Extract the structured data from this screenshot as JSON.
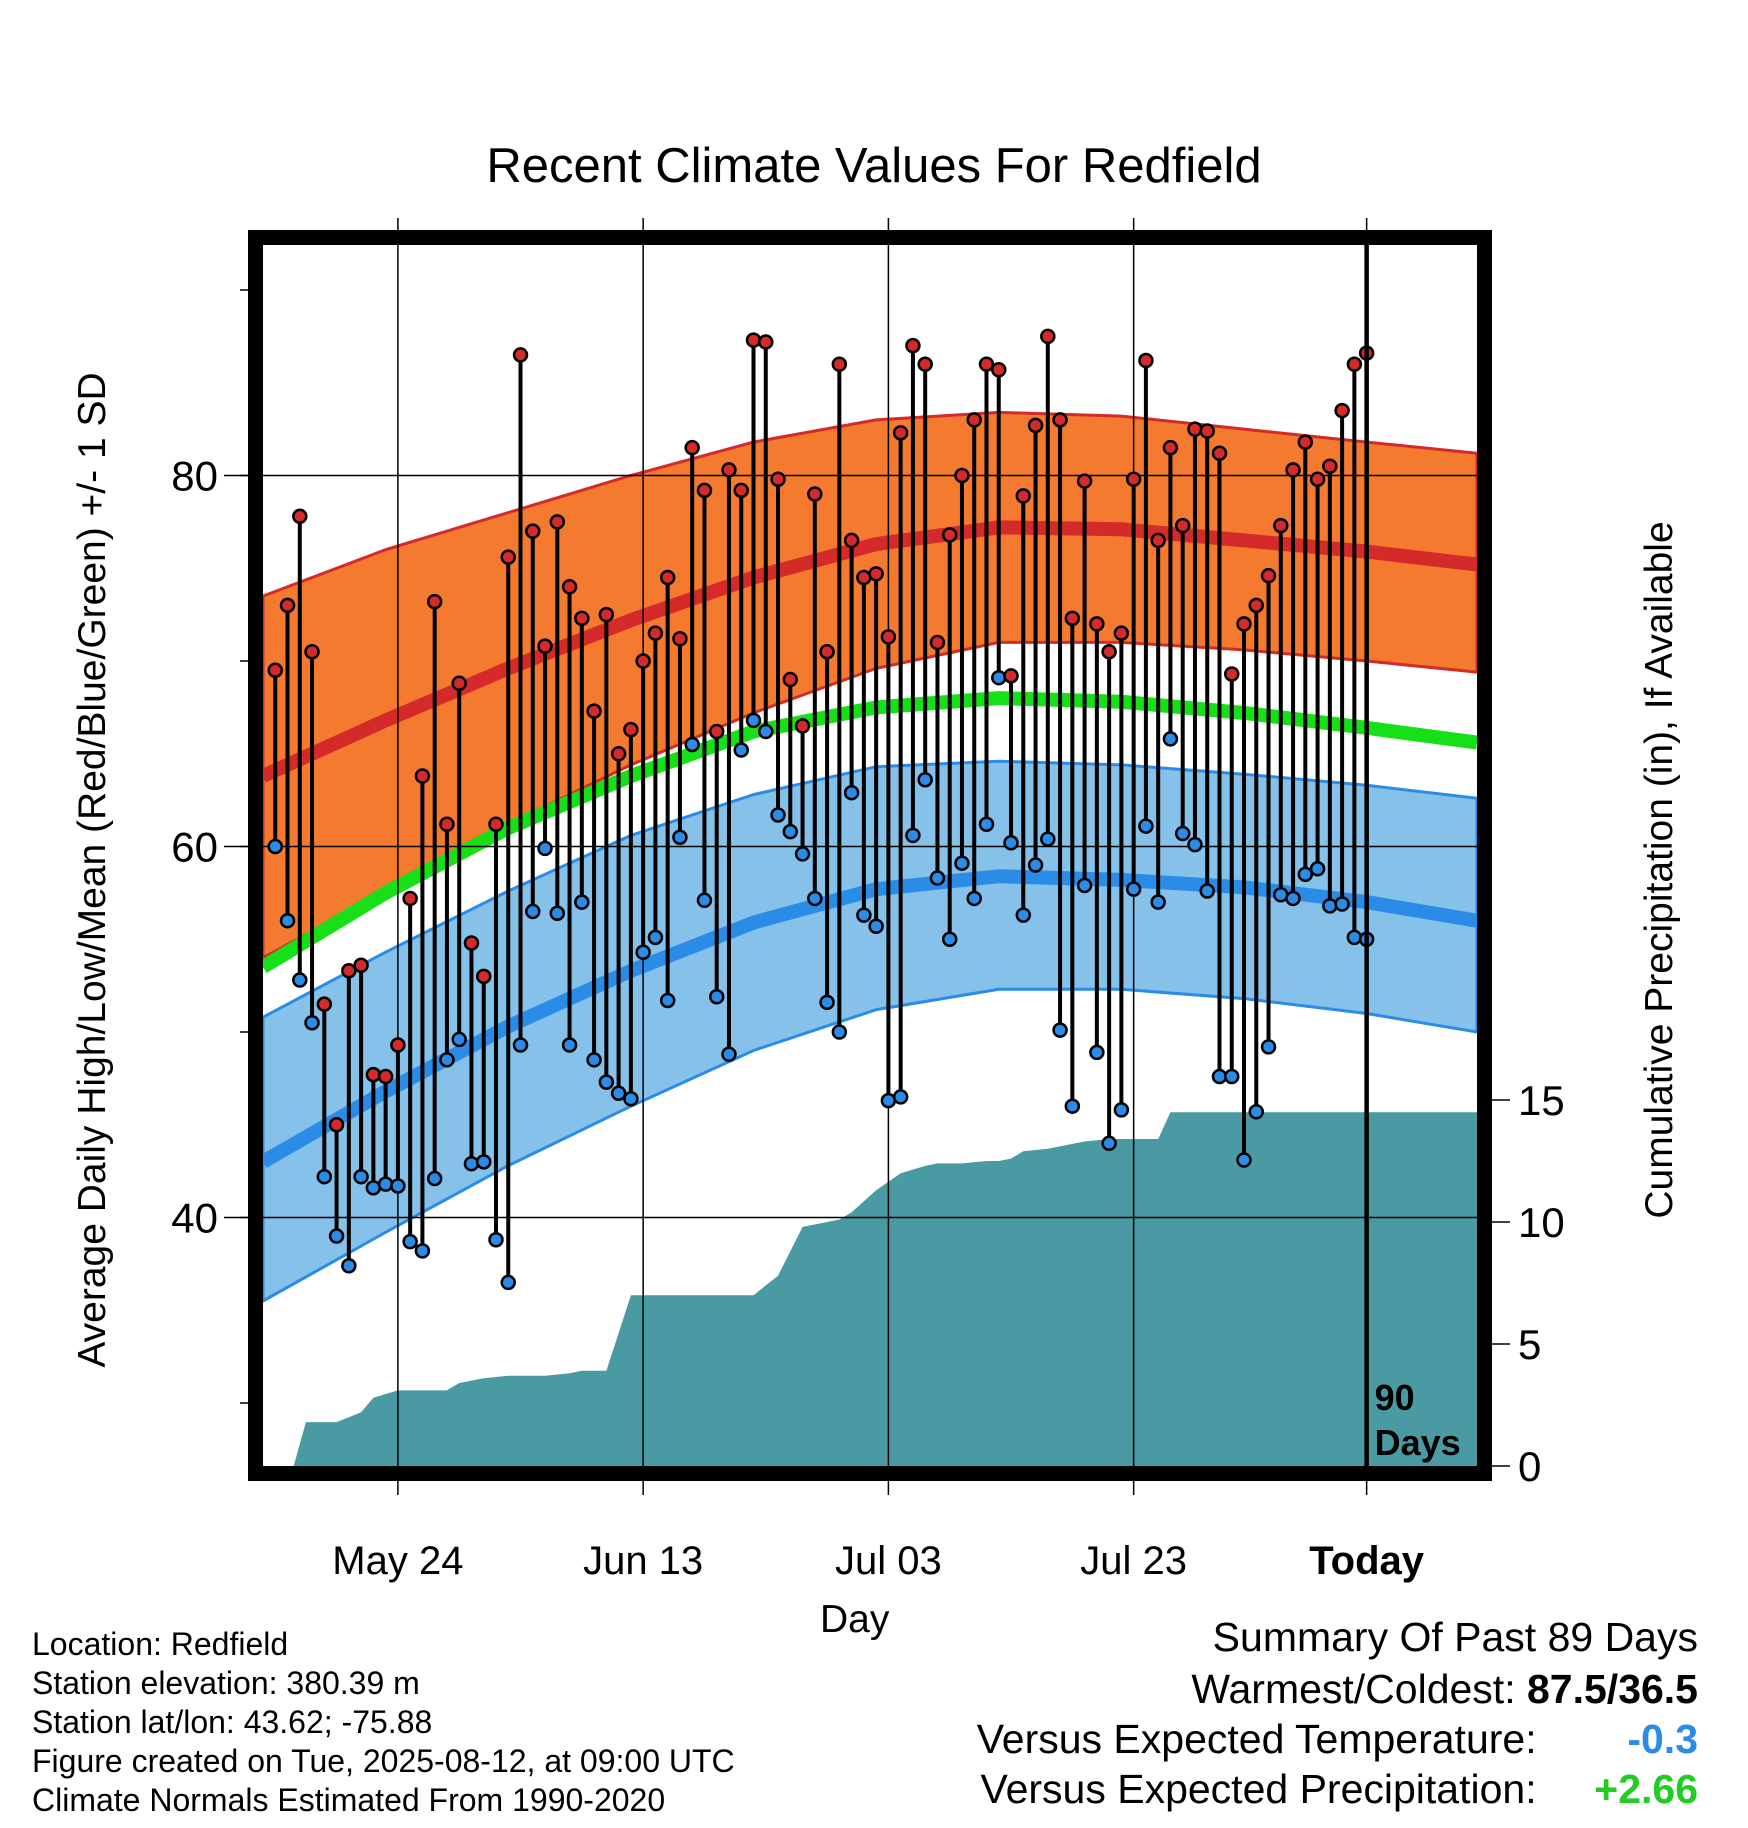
{
  "chart_data": {
    "type": "line",
    "title": "Recent Climate Values For Redfield",
    "ylabel_left": "Average Daily High/Low/Mean (Red/Blue/Green) +/- 1 SD",
    "ylabel_right": "Cumulative Precipitation (in), If Available",
    "xlabel": "Day",
    "x_tick_labels": [
      "May 24",
      "Jun 13",
      "Jul 03",
      "Jul 23",
      "Today"
    ],
    "x_tick_days": [
      -79,
      -59,
      -39,
      -19,
      0
    ],
    "x_range_days": [
      -90,
      9
    ],
    "y_left_ticks": [
      40,
      60,
      80
    ],
    "y_left_range": [
      27,
      93
    ],
    "y_right_ticks": [
      0,
      5,
      10,
      15
    ],
    "y_right_range": [
      0,
      15
    ],
    "window_label": [
      "90",
      "Days"
    ],
    "normals": {
      "days": [
        -90,
        -80,
        -70,
        -60,
        -50,
        -40,
        -30,
        -20,
        -10,
        0,
        9
      ],
      "high_mean": [
        63.8,
        66.8,
        69.6,
        72.2,
        74.5,
        76.3,
        77.2,
        77.1,
        76.5,
        75.9,
        75.2
      ],
      "high_upper": [
        73.5,
        76.0,
        78.0,
        80.0,
        81.8,
        83.0,
        83.4,
        83.2,
        82.5,
        81.8,
        81.2
      ],
      "high_lower": [
        54.0,
        57.6,
        61.2,
        64.4,
        67.2,
        69.6,
        71.0,
        71.0,
        70.6,
        70.0,
        69.4
      ],
      "mean": [
        53.5,
        57.5,
        61.0,
        63.8,
        66.2,
        67.5,
        68.0,
        67.8,
        67.2,
        66.4,
        65.6
      ],
      "low_mean": [
        43.0,
        46.8,
        50.3,
        53.3,
        55.9,
        57.7,
        58.4,
        58.2,
        57.8,
        57.0,
        56.0
      ],
      "low_upper": [
        50.8,
        54.3,
        57.6,
        60.6,
        62.8,
        64.3,
        64.6,
        64.4,
        63.9,
        63.3,
        62.6
      ],
      "low_lower": [
        35.5,
        39.2,
        42.8,
        46.0,
        49.0,
        51.2,
        52.3,
        52.3,
        51.8,
        51.0,
        50.0
      ]
    },
    "series": [
      {
        "name": "Daily High",
        "values": [
          69.5,
          73.0,
          77.8,
          70.5,
          51.5,
          45.0,
          53.3,
          53.6,
          47.7,
          47.6,
          49.3,
          57.2,
          63.8,
          73.2,
          61.2,
          68.8,
          54.8,
          53.0,
          61.2,
          75.6,
          86.5,
          77.0,
          70.8,
          77.5,
          74.0,
          72.3,
          67.3,
          72.5,
          65.0,
          66.3,
          70.0,
          71.5,
          74.5,
          71.2,
          81.5,
          79.2,
          66.2,
          80.3,
          79.2,
          87.3,
          87.2,
          79.8,
          69.0,
          66.5,
          79.0,
          70.5,
          86.0,
          76.5,
          74.5,
          74.7,
          71.3,
          82.3,
          87.0,
          86.0,
          71.0,
          76.8,
          80.0,
          83.0,
          86.0,
          85.7,
          69.2,
          78.9,
          82.7,
          87.5,
          83.0,
          72.3,
          79.7,
          72.0,
          70.5,
          71.5,
          79.8,
          86.2,
          76.5,
          81.5,
          77.3,
          82.5,
          82.4,
          81.2,
          69.3,
          72.0,
          73.0,
          74.6,
          77.3,
          80.3,
          81.8,
          79.8,
          80.5,
          83.5,
          86.0,
          86.6
        ],
        "color": "#d42a2a"
      },
      {
        "name": "Daily Low",
        "values": [
          60.0,
          56.0,
          52.8,
          50.5,
          42.2,
          39.0,
          37.4,
          42.2,
          41.6,
          41.8,
          41.7,
          38.7,
          38.2,
          42.1,
          48.5,
          49.6,
          42.9,
          43.0,
          38.8,
          36.5,
          49.3,
          56.5,
          59.9,
          56.4,
          49.3,
          57.0,
          48.5,
          47.3,
          46.7,
          46.4,
          54.3,
          55.1,
          51.7,
          60.5,
          65.5,
          57.1,
          51.9,
          48.8,
          65.2,
          66.8,
          66.2,
          61.7,
          60.8,
          59.6,
          57.2,
          51.6,
          50.0,
          62.9,
          56.3,
          55.7,
          46.3,
          46.5,
          60.6,
          63.6,
          58.3,
          55.0,
          59.1,
          57.2,
          61.2,
          69.1,
          60.2,
          56.3,
          59.0,
          60.4,
          50.1,
          46.0,
          57.9,
          48.9,
          44.0,
          45.8,
          57.7,
          61.1,
          57.0,
          65.8,
          60.7,
          60.1,
          57.6,
          47.6,
          47.6,
          43.1,
          45.7,
          49.2,
          57.4,
          57.2,
          58.5,
          58.8,
          56.8,
          56.9,
          55.1,
          55.0
        ],
        "color": "#2b8ce8"
      },
      {
        "name": "Cumulative Precipitation",
        "days": [
          -90,
          -87.5,
          -86.5,
          -84,
          -83,
          -82,
          -81,
          -79,
          -78,
          -77,
          -75,
          -74,
          -72,
          -70,
          -69,
          -67,
          -65,
          -64,
          -62,
          -60,
          -58,
          -55,
          -54,
          -53,
          -52,
          -50,
          -48,
          -46,
          -44,
          -43,
          -42,
          -40,
          -38,
          -36,
          -35,
          -33,
          -31,
          -30,
          -29,
          -28,
          -26,
          -24,
          -23,
          -21,
          -19,
          -17,
          -16,
          -15,
          -14,
          9
        ],
        "values": [
          0.0,
          0.0,
          1.8,
          1.8,
          2.0,
          2.2,
          2.8,
          3.1,
          3.1,
          3.1,
          3.1,
          3.4,
          3.6,
          3.7,
          3.7,
          3.7,
          3.8,
          3.9,
          3.9,
          7.0,
          7.0,
          7.0,
          7.0,
          7.0,
          7.0,
          7.0,
          7.8,
          9.8,
          10.0,
          10.1,
          10.4,
          11.3,
          12.0,
          12.3,
          12.4,
          12.4,
          12.5,
          12.5,
          12.6,
          12.9,
          13.0,
          13.2,
          13.3,
          13.4,
          13.4,
          13.4,
          14.5,
          14.5,
          14.5,
          14.5
        ],
        "color": "#4a9aa4"
      }
    ]
  },
  "info": {
    "location": "Location: Redfield",
    "elevation": "Station elevation: 380.39 m",
    "latlon": "Station lat/lon: 43.62; -75.88",
    "created": "Figure created on Tue, 2025-08-12, at 09:00 UTC",
    "normals": "Climate Normals Estimated From 1990-2020"
  },
  "summary": {
    "heading": "Summary Of Past 89 Days",
    "warmest_coldest_label": "Warmest/Coldest:",
    "warmest_coldest_value": "87.5/36.5",
    "temp_label": "Versus Expected Temperature:",
    "temp_value": "-0.3",
    "precip_label": "Versus Expected Precipitation:",
    "precip_value": "+2.66",
    "colors": {
      "temp": "#2b8ce8",
      "precip": "#22cc22"
    }
  }
}
